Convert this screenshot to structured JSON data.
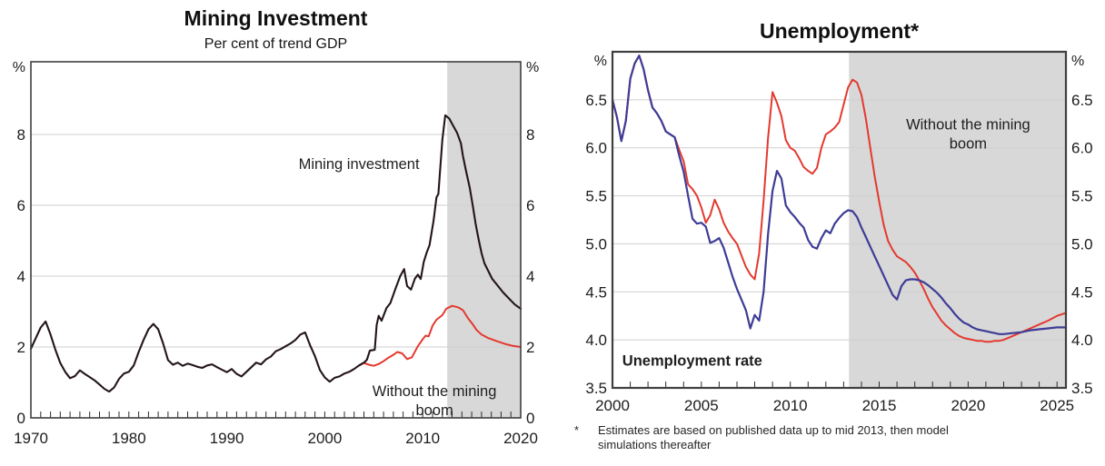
{
  "page": {
    "background": "#ffffff"
  },
  "colors": {
    "actual_line_left": "#231518",
    "counterfactual_red": "#e4392f",
    "actual_line_right": "#3e3c96",
    "navy_label": "#2d2d91",
    "shade": "#d8d8d8",
    "grid": "#cfcfcf",
    "frame": "#3f3f3f"
  },
  "chart_data": [
    {
      "type": "line",
      "title": "Mining Investment",
      "subtitle": "Per cent of trend GDP",
      "y_axis": {
        "unit": "%",
        "tick_values": [
          8,
          6,
          4,
          2,
          0
        ],
        "tick_labels": [
          "8",
          "6",
          "4",
          "2",
          "0"
        ],
        "range": [
          0,
          10.05
        ],
        "grid": true
      },
      "x_axis": {
        "range": [
          1970,
          2020
        ],
        "tick_values": [
          1970,
          1980,
          1990,
          2000,
          2010,
          2020
        ],
        "tick_labels": [
          "1970",
          "1980",
          "1990",
          "2000",
          "2010",
          "2020"
        ],
        "minor_tick_interval": 1
      },
      "shaded_from": 2012.5,
      "series": [
        {
          "name": "Mining investment",
          "color": "#231518",
          "width": 2.1,
          "x": [
            1970,
            1970.5,
            1971,
            1971.5,
            1972,
            1972.5,
            1973,
            1973.5,
            1974,
            1974.5,
            1975,
            1975.5,
            1976,
            1976.5,
            1977,
            1977.5,
            1978,
            1978.5,
            1979,
            1979.5,
            1980,
            1980.5,
            1981,
            1981.5,
            1982,
            1982.5,
            1983,
            1983.5,
            1984,
            1984.5,
            1985,
            1985.5,
            1986,
            1986.5,
            1987,
            1987.5,
            1988,
            1988.5,
            1989,
            1989.5,
            1990,
            1990.5,
            1991,
            1991.5,
            1992,
            1992.5,
            1993,
            1993.5,
            1994,
            1994.5,
            1995,
            1995.5,
            1996,
            1996.5,
            1997,
            1997.5,
            1998,
            1998.5,
            1999,
            1999.5,
            2000,
            2000.5,
            2001,
            2001.5,
            2002,
            2002.5,
            2003,
            2003.5,
            2004,
            2004.3,
            2004.6,
            2005.1,
            2005.3,
            2005.5,
            2005.8,
            2006.3,
            2006.7,
            2007.2,
            2007.7,
            2008.1,
            2008.4,
            2008.8,
            2009.2,
            2009.5,
            2009.8,
            2010.1,
            2010.4,
            2010.7,
            2011.1,
            2011.4,
            2011.6,
            2012,
            2012.3,
            2012.7,
            2013.2,
            2013.5,
            2013.9,
            2014.1,
            2014.4,
            2014.8,
            2015.1,
            2015.4,
            2015.7,
            2016,
            2016.3,
            2016.7,
            2017.1,
            2017.6,
            2018.2,
            2018.8,
            2019.4,
            2020
          ],
          "values": [
            1.95,
            2.25,
            2.55,
            2.72,
            2.35,
            1.92,
            1.55,
            1.3,
            1.12,
            1.18,
            1.34,
            1.24,
            1.15,
            1.06,
            0.94,
            0.82,
            0.74,
            0.86,
            1.1,
            1.25,
            1.3,
            1.48,
            1.86,
            2.2,
            2.5,
            2.65,
            2.5,
            2.1,
            1.63,
            1.5,
            1.56,
            1.47,
            1.53,
            1.49,
            1.44,
            1.41,
            1.48,
            1.51,
            1.43,
            1.36,
            1.29,
            1.38,
            1.24,
            1.17,
            1.3,
            1.43,
            1.56,
            1.51,
            1.65,
            1.73,
            1.88,
            1.94,
            2.02,
            2.1,
            2.2,
            2.35,
            2.41,
            2.05,
            1.74,
            1.35,
            1.14,
            1.02,
            1.13,
            1.17,
            1.25,
            1.3,
            1.38,
            1.48,
            1.56,
            1.64,
            1.9,
            1.92,
            2.62,
            2.88,
            2.74,
            3.1,
            3.24,
            3.63,
            4.0,
            4.2,
            3.72,
            3.62,
            3.93,
            4.04,
            3.92,
            4.4,
            4.66,
            4.88,
            5.56,
            6.22,
            6.32,
            7.85,
            8.54,
            8.45,
            8.2,
            8.05,
            7.75,
            7.4,
            7.0,
            6.5,
            6.0,
            5.48,
            5.05,
            4.65,
            4.36,
            4.14,
            3.92,
            3.75,
            3.54,
            3.37,
            3.2,
            3.08
          ]
        },
        {
          "name": "Without the mining boom",
          "color": "#e4392f",
          "width": 2,
          "x": [
            2003.5,
            2004,
            2004.5,
            2005,
            2005.5,
            2006,
            2006.5,
            2007,
            2007.4,
            2007.9,
            2008.4,
            2008.9,
            2009.5,
            2010,
            2010.3,
            2010.6,
            2011,
            2011.4,
            2012,
            2012.4,
            2013,
            2013.6,
            2014.1,
            2014.6,
            2015.1,
            2015.5,
            2016,
            2016.7,
            2017.6,
            2018.5,
            2019.2,
            2020
          ],
          "values": [
            1.48,
            1.55,
            1.5,
            1.47,
            1.52,
            1.6,
            1.7,
            1.78,
            1.86,
            1.82,
            1.66,
            1.71,
            2.02,
            2.22,
            2.32,
            2.3,
            2.6,
            2.77,
            2.9,
            3.08,
            3.16,
            3.12,
            3.04,
            2.82,
            2.64,
            2.48,
            2.35,
            2.25,
            2.16,
            2.08,
            2.03,
            2.0
          ]
        }
      ],
      "annotations": [
        {
          "lines": [
            "Mining investment"
          ],
          "x": 2003.5,
          "y": 7.15,
          "align": "middle",
          "color": "#1b1b1b",
          "bold": false
        },
        {
          "lines": [
            "Without the mining",
            "boom"
          ],
          "x": 2011.2,
          "y": 0.74,
          "align": "middle",
          "color": "#e4392f",
          "bold": false
        }
      ]
    },
    {
      "type": "line",
      "title": "Unemployment*",
      "subtitle": "",
      "y_axis": {
        "unit": "%",
        "tick_values": [
          6.5,
          6.0,
          5.5,
          5.0,
          4.5,
          4.0,
          3.5
        ],
        "tick_labels": [
          "6.5",
          "6.0",
          "5.5",
          "5.0",
          "4.5",
          "4.0",
          "3.5"
        ],
        "range": [
          3.5,
          7.0
        ],
        "grid": true
      },
      "x_axis": {
        "range": [
          2000,
          2025.5
        ],
        "tick_values": [
          2000,
          2005,
          2010,
          2015,
          2020,
          2025
        ],
        "tick_labels": [
          "2000",
          "2005",
          "2010",
          "2015",
          "2020",
          "2025"
        ],
        "minor_tick_interval": 1
      },
      "shaded_from": 2013.3,
      "series": [
        {
          "name": "Unemployment rate",
          "color": "#3e3c96",
          "width": 2.2,
          "x": [
            2000,
            2000.25,
            2000.5,
            2000.75,
            2001,
            2001.25,
            2001.5,
            2001.75,
            2002,
            2002.25,
            2002.5,
            2002.75,
            2003,
            2003.25,
            2003.5,
            2003.75,
            2004,
            2004.25,
            2004.5,
            2004.75,
            2005,
            2005.25,
            2005.5,
            2005.75,
            2006,
            2006.25,
            2006.5,
            2006.75,
            2007,
            2007.25,
            2007.5,
            2007.75,
            2008,
            2008.25,
            2008.5,
            2008.75,
            2009,
            2009.25,
            2009.5,
            2009.75,
            2010,
            2010.25,
            2010.5,
            2010.75,
            2011,
            2011.25,
            2011.5,
            2011.75,
            2012,
            2012.25,
            2012.5,
            2012.75,
            2013,
            2013.25,
            2013.5,
            2013.75,
            2014,
            2014.25,
            2014.5,
            2014.75,
            2015,
            2015.25,
            2015.5,
            2015.75,
            2016,
            2016.25,
            2016.5,
            2016.75,
            2017,
            2017.25,
            2017.5,
            2017.75,
            2018,
            2018.25,
            2018.5,
            2018.75,
            2019,
            2019.25,
            2019.5,
            2019.75,
            2020,
            2020.25,
            2020.5,
            2020.75,
            2021,
            2021.25,
            2021.5,
            2021.75,
            2022,
            2022.5,
            2023,
            2023.5,
            2024,
            2024.5,
            2025,
            2025.5
          ],
          "values": [
            6.5,
            6.32,
            6.07,
            6.28,
            6.72,
            6.88,
            6.96,
            6.82,
            6.6,
            6.42,
            6.36,
            6.28,
            6.17,
            6.14,
            6.11,
            5.92,
            5.75,
            5.5,
            5.26,
            5.21,
            5.22,
            5.18,
            5.01,
            5.03,
            5.06,
            4.96,
            4.81,
            4.66,
            4.53,
            4.42,
            4.31,
            4.12,
            4.26,
            4.2,
            4.5,
            5.1,
            5.55,
            5.76,
            5.68,
            5.4,
            5.33,
            5.28,
            5.22,
            5.17,
            5.04,
            4.97,
            4.95,
            5.06,
            5.14,
            5.11,
            5.21,
            5.27,
            5.32,
            5.35,
            5.34,
            5.28,
            5.17,
            5.07,
            4.97,
            4.87,
            4.77,
            4.67,
            4.57,
            4.47,
            4.42,
            4.56,
            4.62,
            4.63,
            4.63,
            4.62,
            4.6,
            4.57,
            4.53,
            4.49,
            4.44,
            4.38,
            4.33,
            4.27,
            4.22,
            4.18,
            4.16,
            4.13,
            4.11,
            4.1,
            4.09,
            4.08,
            4.07,
            4.06,
            4.06,
            4.07,
            4.08,
            4.1,
            4.11,
            4.12,
            4.13,
            4.13
          ]
        },
        {
          "name": "Without the mining boom",
          "color": "#e4392f",
          "width": 2,
          "x": [
            2000,
            2000.25,
            2000.5,
            2000.75,
            2001,
            2001.25,
            2001.5,
            2001.75,
            2002,
            2002.25,
            2002.5,
            2002.75,
            2003,
            2003.25,
            2003.5,
            2003.75,
            2004,
            2004.25,
            2004.5,
            2004.75,
            2005,
            2005.25,
            2005.5,
            2005.75,
            2006,
            2006.25,
            2006.5,
            2006.75,
            2007,
            2007.25,
            2007.5,
            2007.75,
            2008,
            2008.25,
            2008.5,
            2008.75,
            2009,
            2009.25,
            2009.5,
            2009.75,
            2010,
            2010.25,
            2010.5,
            2010.75,
            2011,
            2011.25,
            2011.5,
            2011.75,
            2012,
            2012.25,
            2012.5,
            2012.75,
            2013,
            2013.25,
            2013.5,
            2013.75,
            2014,
            2014.25,
            2014.5,
            2014.75,
            2015,
            2015.25,
            2015.5,
            2015.75,
            2016,
            2016.25,
            2016.5,
            2016.75,
            2017,
            2017.25,
            2017.5,
            2017.75,
            2018,
            2018.25,
            2018.5,
            2018.75,
            2019,
            2019.25,
            2019.5,
            2019.75,
            2020,
            2020.25,
            2020.5,
            2020.75,
            2021,
            2021.25,
            2021.5,
            2021.75,
            2022,
            2022.5,
            2023,
            2023.5,
            2024,
            2024.5,
            2025,
            2025.5
          ],
          "values": [
            6.5,
            6.32,
            6.07,
            6.28,
            6.72,
            6.88,
            6.96,
            6.82,
            6.6,
            6.42,
            6.36,
            6.28,
            6.17,
            6.14,
            6.11,
            5.98,
            5.86,
            5.62,
            5.57,
            5.5,
            5.38,
            5.22,
            5.3,
            5.46,
            5.36,
            5.22,
            5.13,
            5.06,
            5.0,
            4.88,
            4.76,
            4.68,
            4.63,
            4.9,
            5.45,
            6.1,
            6.58,
            6.47,
            6.33,
            6.08,
            6.0,
            5.97,
            5.89,
            5.8,
            5.76,
            5.73,
            5.79,
            6.0,
            6.14,
            6.17,
            6.21,
            6.27,
            6.45,
            6.63,
            6.71,
            6.68,
            6.55,
            6.3,
            6.0,
            5.7,
            5.44,
            5.2,
            5.03,
            4.94,
            4.87,
            4.84,
            4.81,
            4.76,
            4.7,
            4.62,
            4.53,
            4.43,
            4.34,
            4.27,
            4.2,
            4.15,
            4.11,
            4.07,
            4.04,
            4.02,
            4.01,
            4.0,
            3.99,
            3.99,
            3.98,
            3.98,
            3.99,
            3.99,
            4.0,
            4.04,
            4.08,
            4.12,
            4.16,
            4.2,
            4.25,
            4.28
          ]
        }
      ],
      "annotations": [
        {
          "lines": [
            "Unemployment rate"
          ],
          "x": 2000.55,
          "y": 3.78,
          "align": "start",
          "color": "#2d2d91",
          "bold": true
        },
        {
          "lines": [
            "Without the mining",
            "boom"
          ],
          "x": 2020,
          "y": 6.24,
          "align": "middle",
          "color": "#e4392f",
          "bold": false
        }
      ],
      "footnote": {
        "marker": "*",
        "lines": [
          "Estimates are based on published data up to mid 2013, then model",
          "simulations thereafter"
        ]
      }
    }
  ]
}
